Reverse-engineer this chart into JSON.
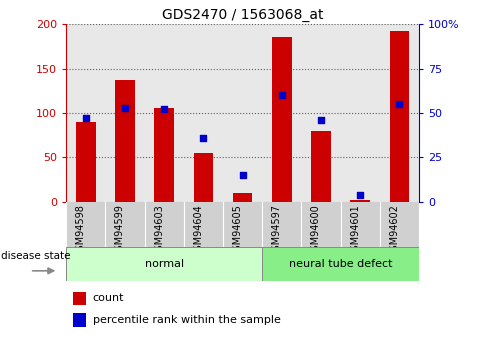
{
  "title": "GDS2470 / 1563068_at",
  "samples": [
    "GSM94598",
    "GSM94599",
    "GSM94603",
    "GSM94604",
    "GSM94605",
    "GSM94597",
    "GSM94600",
    "GSM94601",
    "GSM94602"
  ],
  "count_values": [
    90,
    137,
    106,
    55,
    10,
    185,
    80,
    2,
    192
  ],
  "percentile_values": [
    47,
    53,
    52,
    36,
    15,
    60,
    46,
    4,
    55
  ],
  "groups": [
    {
      "label": "normal",
      "start": 0,
      "end": 5
    },
    {
      "label": "neural tube defect",
      "start": 5,
      "end": 9
    }
  ],
  "ylim_left": [
    0,
    200
  ],
  "ylim_right": [
    0,
    100
  ],
  "yticks_left": [
    0,
    50,
    100,
    150,
    200
  ],
  "yticks_right": [
    0,
    25,
    50,
    75,
    100
  ],
  "yticklabels_right": [
    "0",
    "25",
    "50",
    "75",
    "100%"
  ],
  "left_tick_color": "#cc0000",
  "right_tick_color": "#0000cc",
  "bar_color": "#cc0000",
  "dot_color": "#0000cc",
  "group_color_normal": "#ccffcc",
  "group_color_defect": "#88ee88",
  "label_count": "count",
  "label_percentile": "percentile rank within the sample",
  "background_color": "#ffffff",
  "plot_bg_color": "#e8e8e8",
  "xtick_bg_color": "#d0d0d0"
}
